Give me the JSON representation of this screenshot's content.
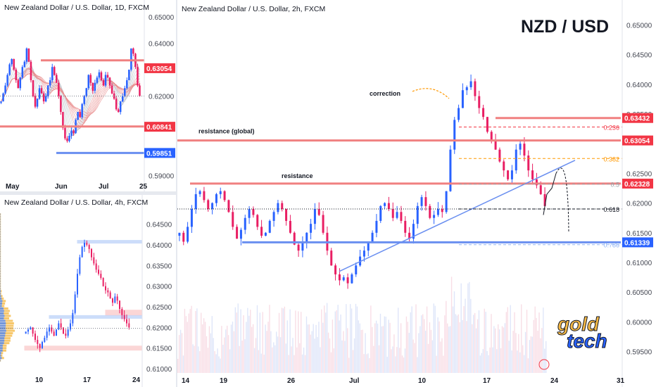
{
  "chart_data": [
    {
      "type": "candlestick",
      "title": "New Zealand Dollar / U.S. Dollar, 1D, FXCM",
      "ylim": [
        0.5885,
        0.651
      ],
      "y_ticks": [
        "0.65000",
        "0.64000",
        "0.62000",
        "0.59000"
      ],
      "x_ticks": [
        "May",
        "Jun",
        "Jul",
        "25"
      ],
      "price_labels": [
        {
          "text": "0.63054",
          "value": 0.63054,
          "color": "#f23645"
        },
        {
          "text": "0.60841",
          "value": 0.60841,
          "color": "#f23645"
        },
        {
          "text": "0.59851",
          "value": 0.59851,
          "color": "#2962ff"
        }
      ],
      "levels": [
        {
          "value": 0.6335,
          "color": "#f08080"
        },
        {
          "value": 0.6085,
          "color": "#f08080"
        },
        {
          "value": 0.5985,
          "color": "#6a8ff0"
        }
      ],
      "series": [
        0.618,
        0.621,
        0.624,
        0.628,
        0.632,
        0.634,
        0.63,
        0.626,
        0.623,
        0.627,
        0.631,
        0.633,
        0.638,
        0.633,
        0.626,
        0.62,
        0.616,
        0.619,
        0.623,
        0.621,
        0.618,
        0.62,
        0.624,
        0.626,
        0.631,
        0.628,
        0.625,
        0.62,
        0.614,
        0.608,
        0.604,
        0.603,
        0.605,
        0.607,
        0.606,
        0.611,
        0.614,
        0.612,
        0.617,
        0.62,
        0.623,
        0.628,
        0.625,
        0.622,
        0.625,
        0.627,
        0.629,
        0.626,
        0.624,
        0.628,
        0.627,
        0.624,
        0.621,
        0.619,
        0.615,
        0.614,
        0.618,
        0.62,
        0.623,
        0.626,
        0.63,
        0.638,
        0.636,
        0.631,
        0.624,
        0.62
      ]
    },
    {
      "type": "candlestick",
      "title": "New Zealand Dollar / U.S. Dollar, 4h, FXCM",
      "ylim": [
        0.6095,
        0.6487
      ],
      "y_ticks": [
        "0.64500",
        "0.64000",
        "0.63500",
        "0.63000",
        "0.62500",
        "0.62000",
        "0.61500",
        "0.61000"
      ],
      "x_ticks": [
        "10",
        "17",
        "24"
      ],
      "zones": [
        {
          "from": 0.6405,
          "to": 0.6411,
          "color": "#90b4f5"
        },
        {
          "from": 0.623,
          "to": 0.6242,
          "color": "#f7a6a6"
        },
        {
          "from": 0.6222,
          "to": 0.6229,
          "color": "#90b4f5"
        },
        {
          "from": 0.6145,
          "to": 0.6155,
          "color": "#f7a6a6"
        }
      ],
      "series": [
        0.619,
        0.6195,
        0.62,
        0.6185,
        0.617,
        0.616,
        0.615,
        0.6165,
        0.6175,
        0.619,
        0.62,
        0.619,
        0.618,
        0.6195,
        0.621,
        0.62,
        0.6185,
        0.618,
        0.6195,
        0.621,
        0.6235,
        0.628,
        0.633,
        0.637,
        0.6395,
        0.6405,
        0.64,
        0.639,
        0.637,
        0.6355,
        0.634,
        0.633,
        0.632,
        0.63,
        0.629,
        0.6285,
        0.627,
        0.626,
        0.6275,
        0.6265,
        0.6245,
        0.623,
        0.622,
        0.621,
        0.62
      ]
    },
    {
      "type": "candlestick",
      "title": "New Zealand Dollar / U.S. Dollar, 2h, FXCM",
      "symbol": "NZD / USD",
      "ylim": [
        0.592,
        0.653
      ],
      "y_ticks": [
        "0.65000",
        "0.64500",
        "0.64000",
        "0.63500",
        "0.62500",
        "0.62000",
        "0.61500",
        "0.61000",
        "0.60500",
        "0.60000",
        "0.59500"
      ],
      "x_ticks": [
        "14",
        "19",
        "26",
        "Jul",
        "10",
        "17",
        "24",
        "31"
      ],
      "price_labels": [
        {
          "text": "0.63432",
          "value": 0.63432,
          "color": "#f23645"
        },
        {
          "text": "0.63054",
          "value": 0.63054,
          "color": "#f23645"
        },
        {
          "text": "0.62328",
          "value": 0.62328,
          "color": "#f23645"
        },
        {
          "text": "0.61339",
          "value": 0.61339,
          "color": "#2962ff"
        }
      ],
      "levels": [
        {
          "value": 0.63054,
          "label": "resistance (global)",
          "color": "#f08080"
        },
        {
          "value": 0.62328,
          "label": "resistance",
          "color": "#f08080"
        },
        {
          "value": 0.63432,
          "label": "",
          "color": "#f08080"
        },
        {
          "value": 0.61339,
          "label": "",
          "color": "#6a8ff0"
        }
      ],
      "fibonacci": [
        {
          "ratio": "0.236",
          "value": 0.6328,
          "color": "#f23645"
        },
        {
          "ratio": "0.382",
          "value": 0.6275,
          "color": "#ff9800"
        },
        {
          "ratio": "0.5",
          "value": 0.6232,
          "color": "#9aa0a6"
        },
        {
          "ratio": "0.618",
          "value": 0.619,
          "color": "#131722"
        },
        {
          "ratio": "0.786",
          "value": 0.613,
          "color": "#90b4f5"
        }
      ],
      "annotations": [
        "correction",
        "resistance (global)",
        "resistance"
      ],
      "logo": [
        "gold",
        "tech"
      ],
      "series": [
        0.615,
        0.6135,
        0.616,
        0.619,
        0.6215,
        0.622,
        0.6205,
        0.619,
        0.62,
        0.6215,
        0.622,
        0.6205,
        0.6185,
        0.616,
        0.614,
        0.6155,
        0.6175,
        0.619,
        0.618,
        0.616,
        0.6145,
        0.615,
        0.617,
        0.6185,
        0.62,
        0.619,
        0.617,
        0.615,
        0.613,
        0.612,
        0.6135,
        0.615,
        0.6165,
        0.619,
        0.618,
        0.615,
        0.612,
        0.6095,
        0.608,
        0.607,
        0.6075,
        0.6065,
        0.608,
        0.6095,
        0.611,
        0.612,
        0.6135,
        0.615,
        0.617,
        0.6195,
        0.62,
        0.619,
        0.6175,
        0.6185,
        0.617,
        0.615,
        0.614,
        0.6165,
        0.6195,
        0.621,
        0.6195,
        0.6175,
        0.618,
        0.619,
        0.6185,
        0.622,
        0.629,
        0.634,
        0.636,
        0.639,
        0.6395,
        0.6405,
        0.638,
        0.636,
        0.6345,
        0.632,
        0.6305,
        0.629,
        0.627,
        0.6255,
        0.624,
        0.6255,
        0.629,
        0.63,
        0.628,
        0.6255,
        0.624,
        0.623,
        0.6215,
        0.6195
      ]
    }
  ]
}
